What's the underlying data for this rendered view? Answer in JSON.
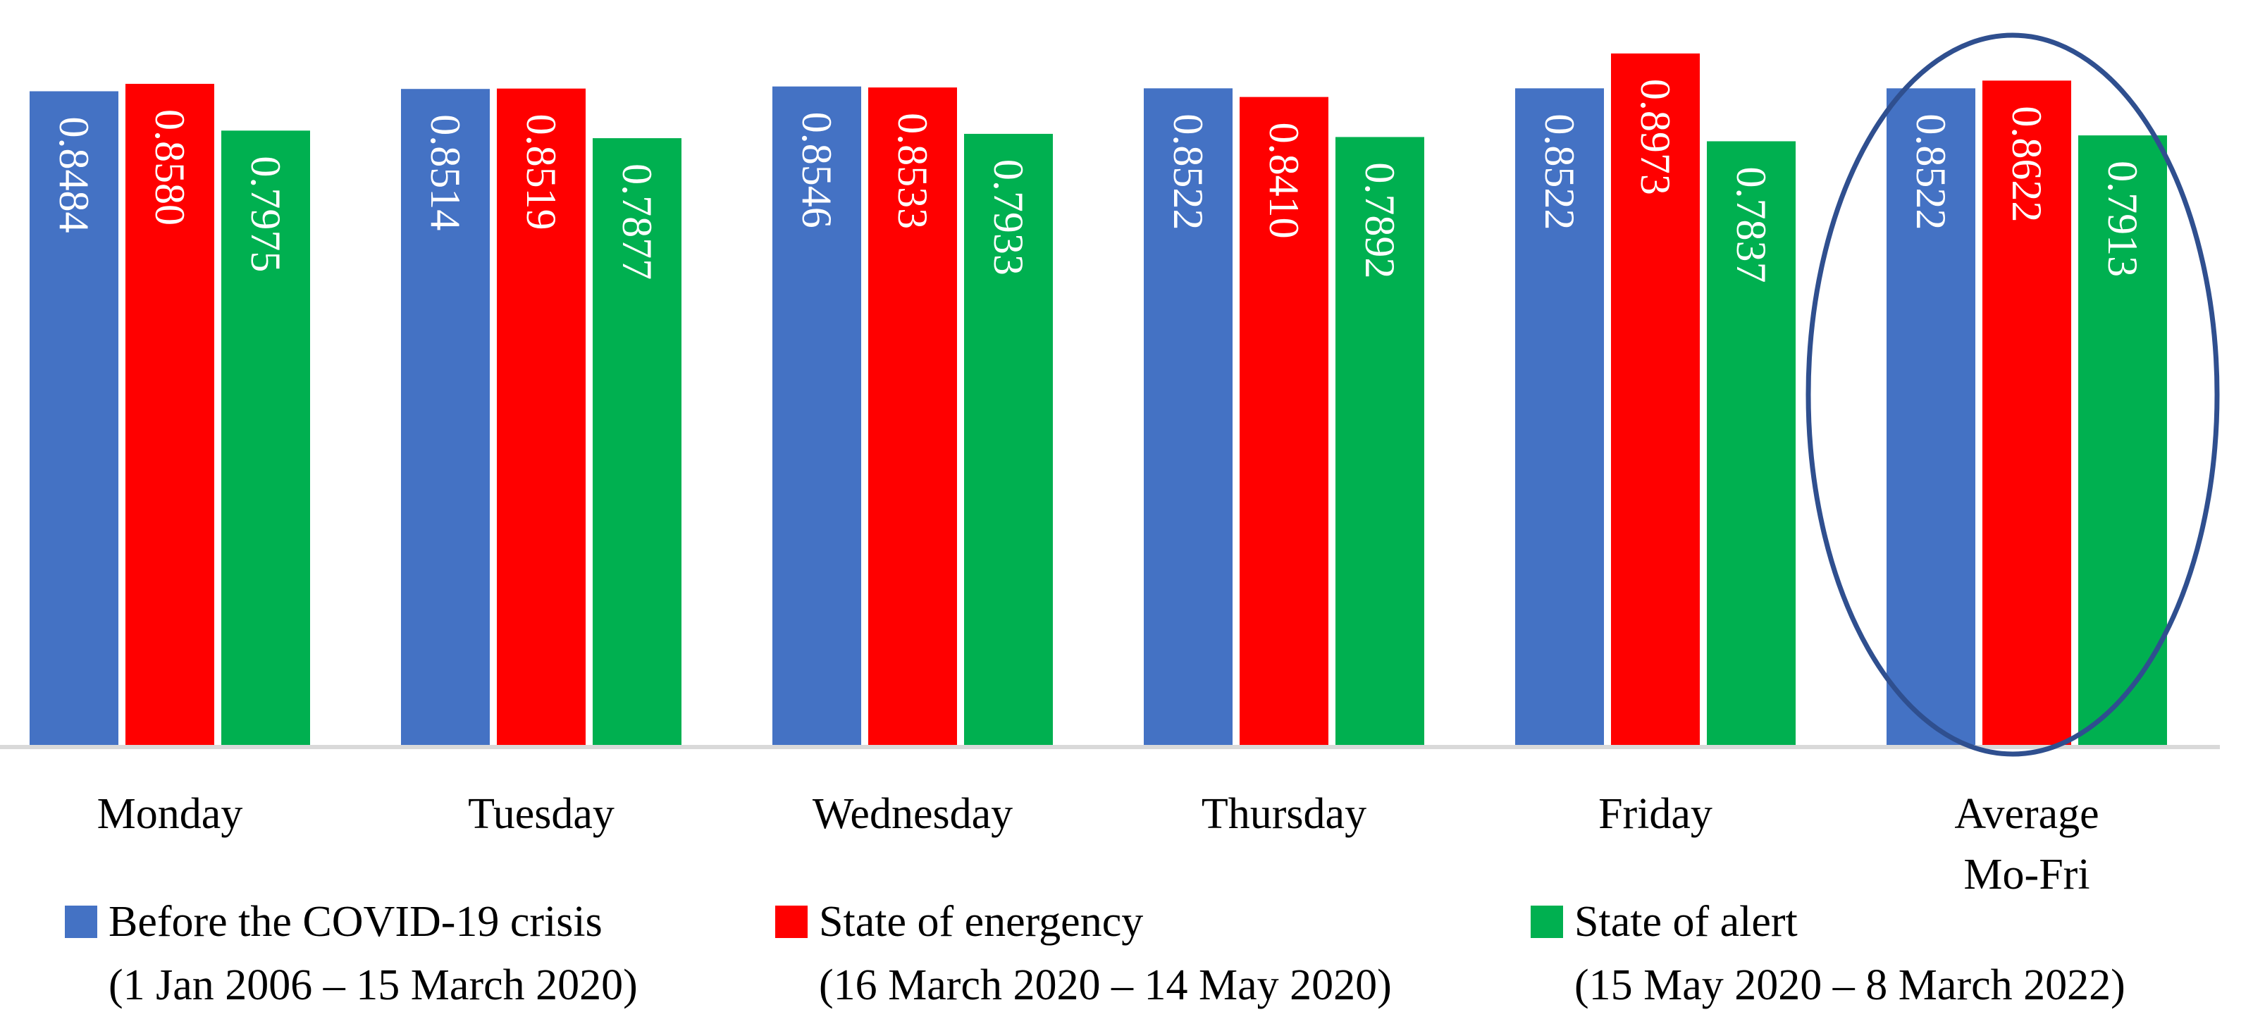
{
  "chart_data": {
    "type": "bar",
    "title": "",
    "xlabel": "",
    "ylabel": "",
    "ylim": [
      0,
      0.93
    ],
    "grid": false,
    "legend_position": "bottom",
    "categories": [
      [
        "Monday"
      ],
      [
        "Tuesday"
      ],
      [
        "Wednesday"
      ],
      [
        "Thursday"
      ],
      [
        "Friday"
      ],
      [
        "Average",
        "Mo-Fri"
      ]
    ],
    "series": [
      {
        "name": "Before the COVID-19 crisis",
        "period": "(1 Jan 2006 – 15 March 2020)",
        "color": "#4472C4",
        "values": [
          0.8484,
          0.8514,
          0.8546,
          0.8522,
          0.8522,
          0.8522
        ],
        "labels": [
          "0.8484",
          "0.8514",
          "0.8546",
          "0.8522",
          "0.8522",
          "0.8522"
        ]
      },
      {
        "name": "State of energency",
        "period": "(16 March 2020 – 14 May 2020)",
        "color": "#FF0000",
        "values": [
          0.858,
          0.8519,
          0.8533,
          0.841,
          0.8973,
          0.8622
        ],
        "labels": [
          "0.8580",
          "0.8519",
          "0.8533",
          "0.8410",
          "0.8973",
          "0.8622"
        ]
      },
      {
        "name": "State of alert",
        "period": "(15 May 2020 – 8 March 2022)",
        "color": "#00B050",
        "values": [
          0.7975,
          0.7877,
          0.7933,
          0.7892,
          0.7837,
          0.7913
        ],
        "labels": [
          "0.7975",
          "0.7877",
          "0.7933",
          "0.7892",
          "0.7837",
          "0.7913"
        ]
      }
    ],
    "highlight": {
      "category_index": 5,
      "shape": "ellipse",
      "color": "#2F4F8F"
    }
  }
}
